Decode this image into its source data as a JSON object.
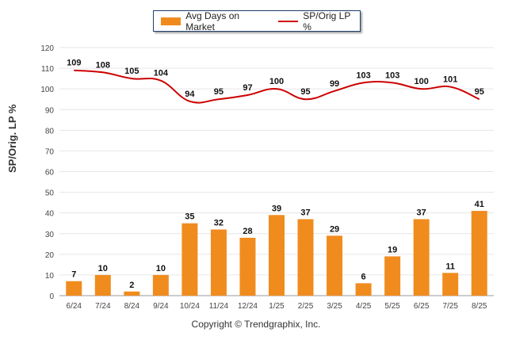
{
  "legend": {
    "bar_label": "Avg Days on Market",
    "line_label": "SP/Orig LP %"
  },
  "ylabel": "SP/Orig. LP %",
  "footer": "Copyright © Trendgraphix, Inc.",
  "colors": {
    "bar": "#f08c1e",
    "line": "#cc0000",
    "grid": "#e6e6e6"
  },
  "chart_data": {
    "type": "bar",
    "categories": [
      "6/24",
      "7/24",
      "8/24",
      "9/24",
      "10/24",
      "11/24",
      "12/24",
      "1/25",
      "2/25",
      "3/25",
      "4/25",
      "5/25",
      "6/25",
      "7/25",
      "8/25"
    ],
    "series": [
      {
        "name": "Avg Days on Market",
        "type": "bar",
        "values": [
          7,
          10,
          2,
          10,
          35,
          32,
          28,
          39,
          37,
          29,
          6,
          19,
          37,
          11,
          41
        ]
      },
      {
        "name": "SP/Orig LP %",
        "type": "line",
        "values": [
          109,
          108,
          105,
          104,
          94,
          95,
          97,
          100,
          95,
          99,
          103,
          103,
          100,
          101,
          95
        ]
      }
    ],
    "ylabel": "SP/Orig. LP %",
    "ylim": [
      0,
      120
    ],
    "yticks": [
      0,
      10,
      20,
      30,
      40,
      50,
      60,
      70,
      80,
      90,
      100,
      110,
      120
    ],
    "grid": true,
    "legend": "top-center"
  }
}
